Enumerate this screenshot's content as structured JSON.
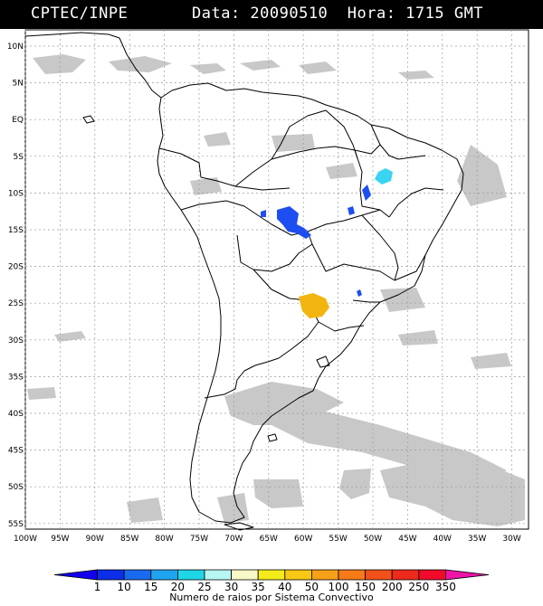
{
  "header": {
    "source": "CPTEC/INPE",
    "datetime": "Data: 20090510  Hora: 1715 GMT"
  },
  "map": {
    "lat_labels": [
      "10N",
      "5N",
      "EQ",
      "5S",
      "10S",
      "15S",
      "20S",
      "25S",
      "30S",
      "35S",
      "40S",
      "45S",
      "50S",
      "55S"
    ],
    "lon_labels": [
      "100W",
      "95W",
      "90W",
      "85W",
      "80W",
      "75W",
      "70W",
      "65W",
      "60W",
      "55W",
      "50W",
      "45W",
      "40W",
      "35W",
      "30W"
    ],
    "colors": {
      "land_outline": "#000000",
      "cloud": "#c8c8c8",
      "grid": "#9a9a9a"
    },
    "systems": [
      {
        "name": "central-brazil-cluster",
        "color": "#1e4ef0"
      },
      {
        "name": "northeast-brazil-cluster",
        "color": "#3ad4f0"
      },
      {
        "name": "paraguay-cluster",
        "color": "#f2b50f"
      }
    ]
  },
  "colorbar": {
    "caption": "Numero de raios por Sistema Convectivo",
    "labels": [
      "1",
      "10",
      "15",
      "20",
      "25",
      "30",
      "35",
      "40",
      "50",
      "100",
      "150",
      "200",
      "250",
      "350"
    ],
    "colors": [
      "#1200ee",
      "#0b2ee8",
      "#1a6af0",
      "#20a4f0",
      "#1fd6e6",
      "#b8f6f4",
      "#f8f8c8",
      "#f4ec1a",
      "#f8c814",
      "#f6a018",
      "#f67a18",
      "#f2501a",
      "#ee2a1c",
      "#f20a2a",
      "#ee14a8"
    ]
  }
}
